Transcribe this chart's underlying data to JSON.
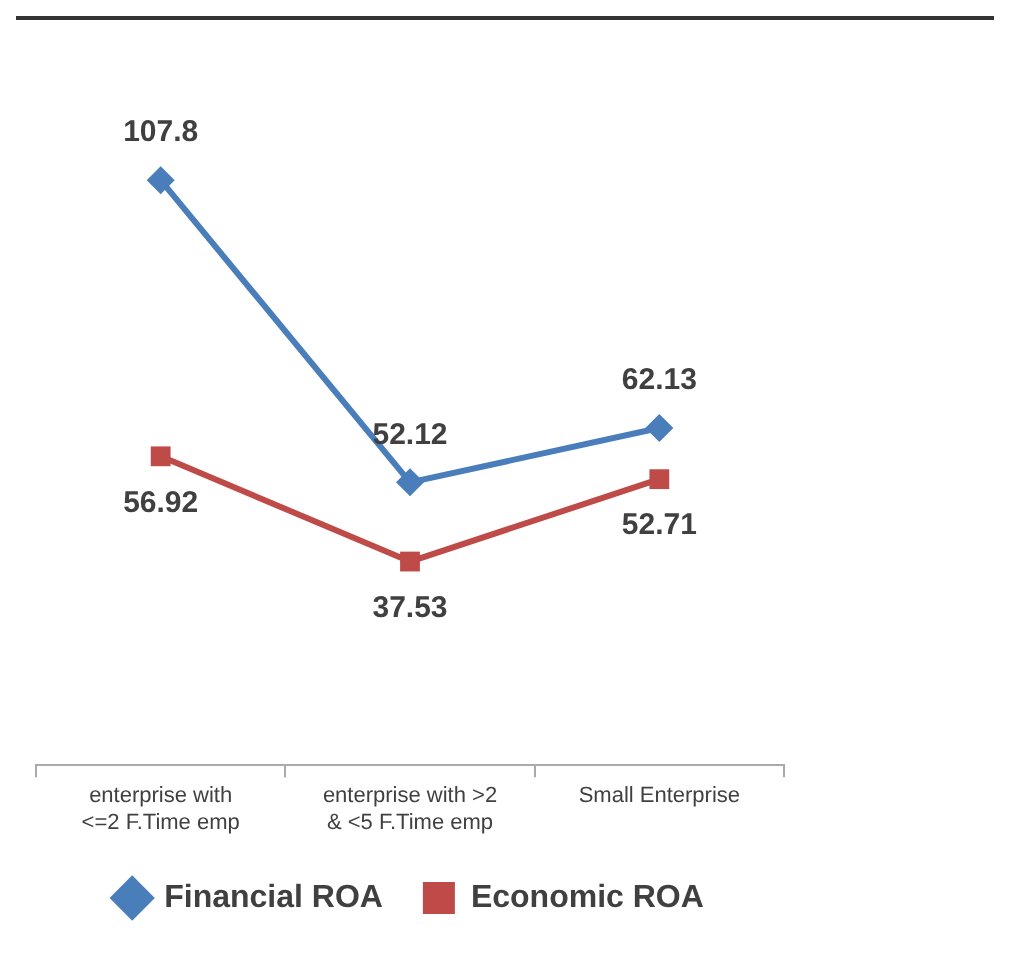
{
  "chart_data": {
    "type": "line",
    "categories": [
      "enterprise with <=2 F.Time emp",
      "enterprise with >2 & <5 F.Time emp",
      "Small Enterprise"
    ],
    "series": [
      {
        "name": "Financial ROA",
        "color": "#4a7ebb",
        "values": [
          107.8,
          52.12,
          62.13
        ],
        "marker": "diamond"
      },
      {
        "name": "Economic ROA",
        "color": "#be4b48",
        "values": [
          56.92,
          37.53,
          52.71
        ],
        "marker": "square"
      }
    ],
    "tick_labels": "x",
    "data_labels": true,
    "grid": false,
    "legend": "bottom",
    "line_style": "solid"
  }
}
